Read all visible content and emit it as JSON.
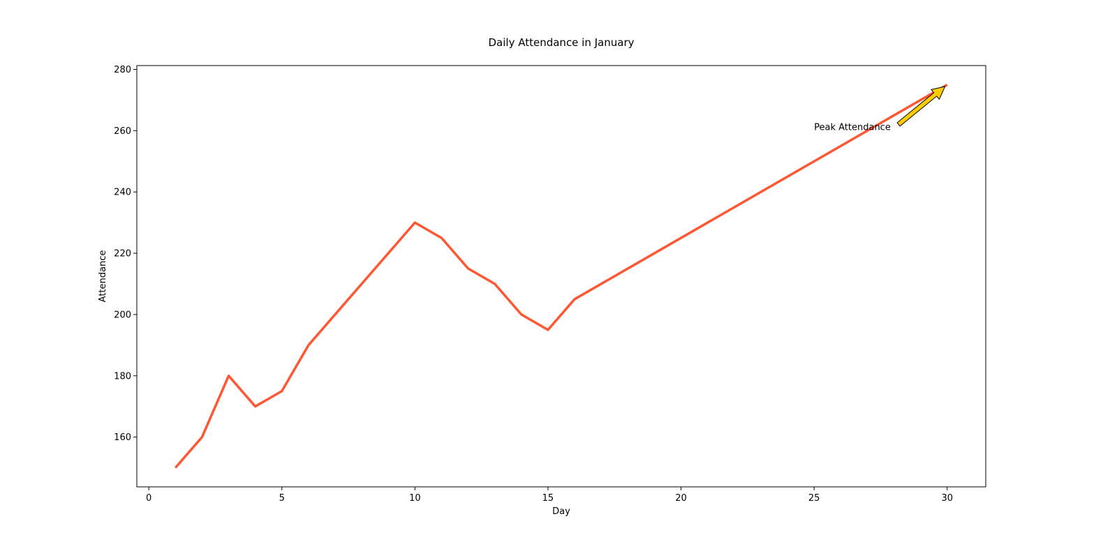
{
  "chart_data": {
    "type": "line",
    "title": "Daily Attendance in January",
    "xlabel": "Day",
    "ylabel": "Attendance",
    "xlim": [
      -0.45,
      31.45
    ],
    "ylim": [
      143.75,
      281.25
    ],
    "xticks": [
      0,
      5,
      10,
      15,
      20,
      25,
      30
    ],
    "yticks": [
      160,
      180,
      200,
      220,
      240,
      260,
      280
    ],
    "grid": false,
    "series": [
      {
        "x": [
          1,
          2,
          3,
          4,
          5,
          6,
          10,
          11,
          12,
          13,
          14,
          15,
          16,
          30
        ],
        "values": [
          150,
          160,
          180,
          170,
          175,
          190,
          230,
          225,
          215,
          210,
          200,
          195,
          205,
          275
        ],
        "color": "#ff5733"
      }
    ],
    "annotations": [
      {
        "text": "Peak Attendance",
        "point": [
          30,
          275
        ],
        "text_pos": [
          25,
          260
        ],
        "arrow_color": "#ffcc00"
      }
    ]
  }
}
